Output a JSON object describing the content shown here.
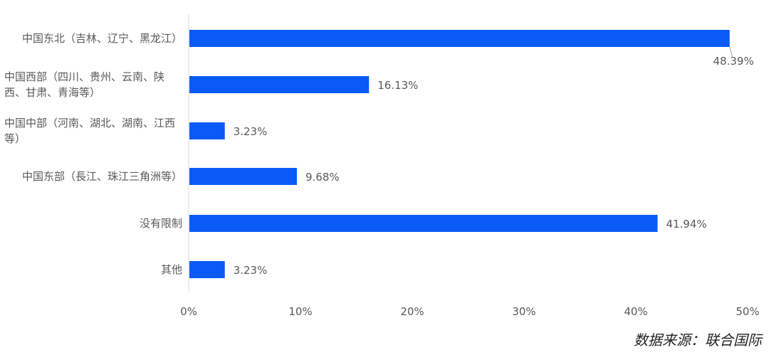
{
  "chart_data": {
    "type": "bar",
    "orientation": "horizontal",
    "categories": [
      "中国东北（吉林、辽宁、黑龙江）",
      "中国西部（四川、贵州、云南、陕西、甘肃、青海等）",
      "中国中部（河南、湖北、湖南、江西等）",
      "中国东部（長江、珠江三角洲等）",
      "没有限制",
      "其他"
    ],
    "values": [
      48.39,
      16.13,
      3.23,
      9.68,
      41.94,
      3.23
    ],
    "data_labels": [
      "48.39%",
      "16.13%",
      "3.23%",
      "9.68%",
      "41.94%",
      "3.23%"
    ],
    "xlim": [
      0,
      50
    ],
    "xticks": [
      0,
      10,
      20,
      30,
      40,
      50
    ],
    "xtick_labels": [
      "0%",
      "10%",
      "20%",
      "30%",
      "40%",
      "50%"
    ],
    "bar_color": "#0a5af5",
    "grid": false,
    "title": "",
    "xlabel": "",
    "ylabel": ""
  },
  "source": "数据来源：联合国际"
}
